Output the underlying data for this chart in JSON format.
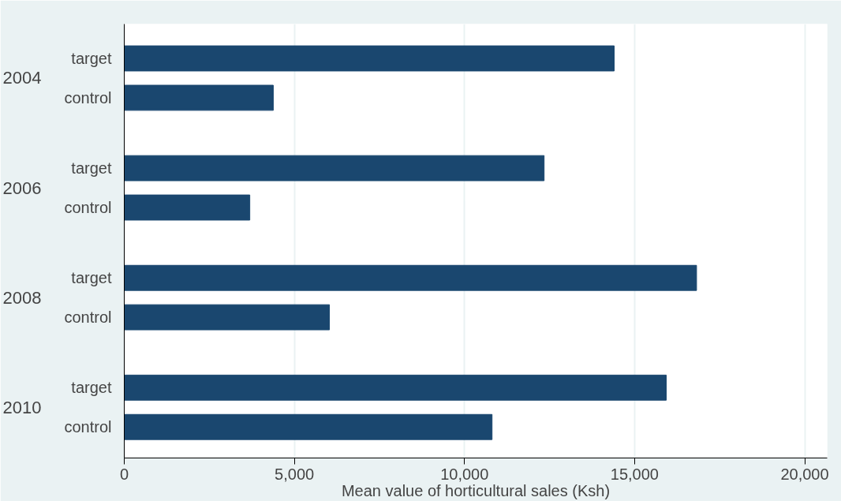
{
  "chart_data": {
    "type": "bar",
    "orientation": "horizontal",
    "categories": [
      "target",
      "control",
      "target",
      "control",
      "target",
      "control",
      "target",
      "control"
    ],
    "values": [
      14400,
      4380,
      12340,
      3690,
      16820,
      6030,
      15930,
      10810
    ],
    "color": "#1a476f",
    "annotations": [
      "2004",
      "2006",
      "2008",
      "2010"
    ],
    "xlabel": "Mean value of horticultural sales (Ksh)",
    "xlim": [
      0,
      20660
    ],
    "xticks": [
      0,
      {
        "value": 5000,
        "label": "5,000"
      },
      {
        "value": 10000,
        "label": "10,000"
      },
      {
        "value": 15000,
        "label": "15,000"
      },
      {
        "value": 20000,
        "label": "20,000"
      }
    ],
    "grid": "x"
  }
}
